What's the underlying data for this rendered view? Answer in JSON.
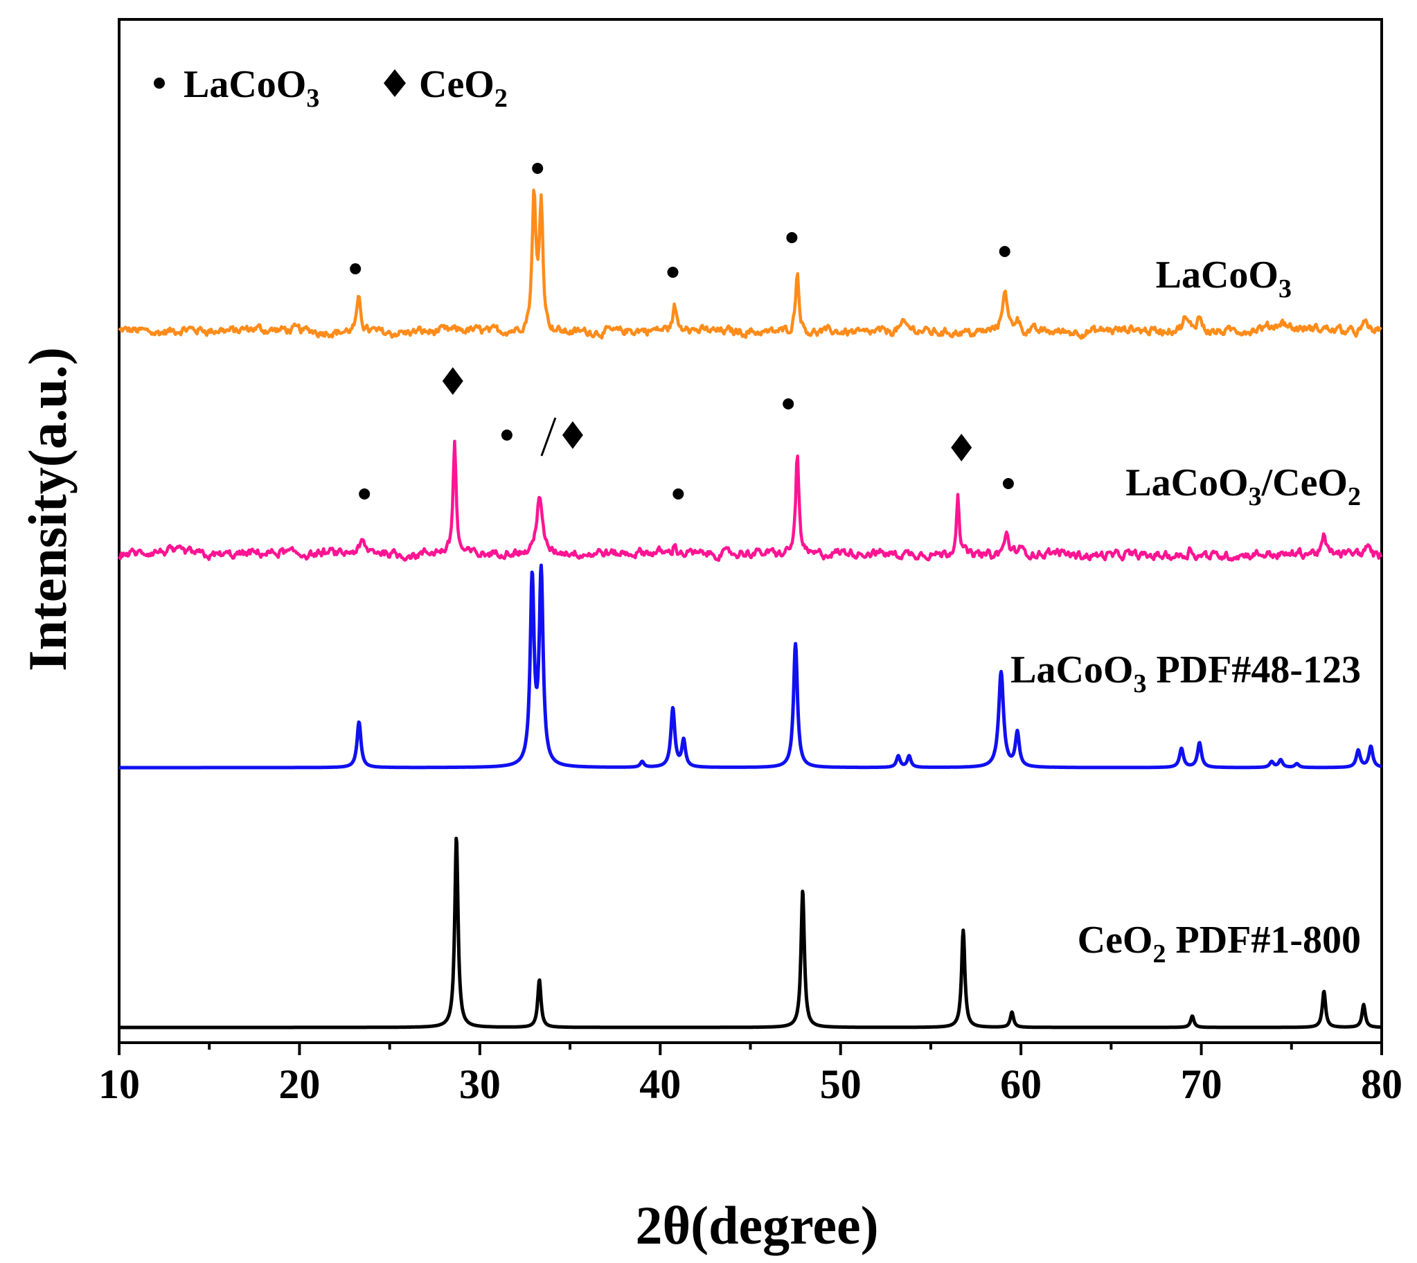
{
  "chart_data": {
    "type": "line",
    "xlabel": "2θ(degree)",
    "ylabel": "Intensity(a.u.)",
    "xlim": [
      10,
      80
    ],
    "xticks": [
      "10",
      "20",
      "30",
      "40",
      "50",
      "60",
      "70",
      "80"
    ],
    "grid": false,
    "legend": {
      "placement": "top-left",
      "entries": [
        {
          "marker": "circle",
          "label": "LaCoO",
          "sub": "3"
        },
        {
          "marker": "diamond",
          "label": "CeO",
          "sub": "2"
        }
      ]
    },
    "series": [
      {
        "name": "LaCoO3",
        "label_parts": [
          {
            "t": "LaCoO"
          },
          {
            "t": "3",
            "sub": true
          }
        ],
        "color": "#FF8C1A",
        "noisy": true,
        "baseline": 0.0,
        "peaks": [
          [
            23.3,
            0.25,
            0.12
          ],
          [
            33.0,
            1.0,
            0.12
          ],
          [
            33.4,
            0.95,
            0.12
          ],
          [
            40.8,
            0.18,
            0.12
          ],
          [
            41.5,
            0.05,
            0.12
          ],
          [
            47.6,
            0.45,
            0.12
          ],
          [
            53.5,
            0.05,
            0.3
          ],
          [
            59.1,
            0.32,
            0.15
          ],
          [
            59.8,
            0.1,
            0.15
          ],
          [
            69.1,
            0.08,
            0.15
          ],
          [
            69.9,
            0.1,
            0.15
          ],
          [
            74.5,
            0.05,
            0.4
          ],
          [
            79.1,
            0.06,
            0.15
          ]
        ]
      },
      {
        "name": "LaCoO3/CeO2",
        "label_parts": [
          {
            "t": "LaCoO"
          },
          {
            "t": "3",
            "sub": true
          },
          {
            "t": "/CeO"
          },
          {
            "t": "2",
            "sub": true
          }
        ],
        "color": "#FF1493",
        "noisy": true,
        "baseline": 0.0,
        "peaks": [
          [
            23.5,
            0.07,
            0.15
          ],
          [
            28.6,
            0.85,
            0.1
          ],
          [
            33.3,
            0.45,
            0.18
          ],
          [
            40.8,
            0.07,
            0.12
          ],
          [
            47.6,
            0.78,
            0.1
          ],
          [
            56.5,
            0.47,
            0.1
          ],
          [
            59.2,
            0.15,
            0.15
          ],
          [
            59.9,
            0.05,
            0.12
          ],
          [
            69.4,
            0.06,
            0.15
          ],
          [
            76.8,
            0.14,
            0.1
          ],
          [
            79.2,
            0.08,
            0.12
          ]
        ]
      },
      {
        "name": "LaCoO3 PDF#48-123",
        "label_parts": [
          {
            "t": "LaCoO"
          },
          {
            "t": "3",
            "sub": true
          },
          {
            "t": " PDF#48-123"
          }
        ],
        "color": "#1010F0",
        "noisy": false,
        "baseline": 0.0,
        "peaks": [
          [
            23.3,
            0.24,
            0.13
          ],
          [
            32.9,
            0.97,
            0.13
          ],
          [
            33.4,
            1.0,
            0.13
          ],
          [
            39.0,
            0.03,
            0.12
          ],
          [
            40.7,
            0.31,
            0.13
          ],
          [
            41.3,
            0.14,
            0.12
          ],
          [
            47.5,
            0.65,
            0.13
          ],
          [
            53.2,
            0.06,
            0.12
          ],
          [
            53.8,
            0.06,
            0.12
          ],
          [
            58.9,
            0.5,
            0.16
          ],
          [
            59.8,
            0.18,
            0.13
          ],
          [
            68.9,
            0.1,
            0.13
          ],
          [
            69.9,
            0.13,
            0.13
          ],
          [
            73.9,
            0.03,
            0.13
          ],
          [
            74.4,
            0.04,
            0.13
          ],
          [
            75.3,
            0.02,
            0.13
          ],
          [
            78.7,
            0.09,
            0.13
          ],
          [
            79.4,
            0.11,
            0.13
          ]
        ]
      },
      {
        "name": "CeO2 PDF#1-800",
        "label_parts": [
          {
            "t": "CeO"
          },
          {
            "t": "2",
            "sub": true
          },
          {
            "t": " PDF#1-800"
          }
        ],
        "color": "#000000",
        "noisy": false,
        "baseline": 0.0,
        "peaks": [
          [
            28.7,
            1.0,
            0.11
          ],
          [
            33.3,
            0.25,
            0.11
          ],
          [
            47.9,
            0.72,
            0.11
          ],
          [
            56.8,
            0.51,
            0.11
          ],
          [
            59.5,
            0.08,
            0.11
          ],
          [
            69.5,
            0.06,
            0.11
          ],
          [
            76.8,
            0.19,
            0.11
          ],
          [
            79.0,
            0.12,
            0.11
          ]
        ]
      }
    ],
    "annotations": [
      {
        "series": 0,
        "x": 23.1,
        "symbol": "circle"
      },
      {
        "series": 0,
        "x": 33.2,
        "symbol": "circle"
      },
      {
        "series": 0,
        "x": 40.7,
        "symbol": "circle"
      },
      {
        "series": 0,
        "x": 47.3,
        "symbol": "circle"
      },
      {
        "series": 0,
        "x": 59.1,
        "symbol": "circle"
      },
      {
        "series": 1,
        "x": 28.5,
        "symbol": "diamond"
      },
      {
        "series": 1,
        "x": 23.6,
        "symbol": "circle"
      },
      {
        "series": 1,
        "x": 31.5,
        "symbol": "circle-slash-diamond"
      },
      {
        "series": 1,
        "x": 41.0,
        "symbol": "circle"
      },
      {
        "series": 1,
        "x": 47.1,
        "symbol": "circle"
      },
      {
        "series": 1,
        "x": 56.7,
        "symbol": "diamond"
      },
      {
        "series": 1,
        "x": 59.3,
        "symbol": "circle"
      }
    ]
  }
}
